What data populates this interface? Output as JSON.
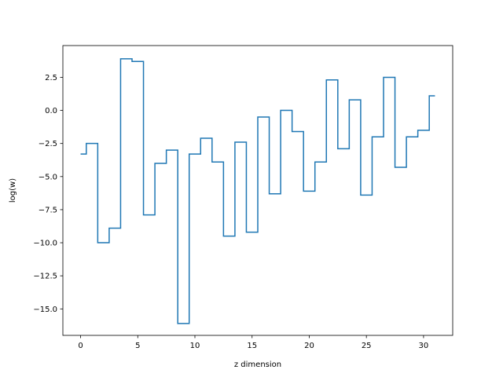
{
  "chart_data": {
    "type": "line",
    "drawstyle": "steps-mid",
    "title": "",
    "xlabel": "z dimension",
    "ylabel": "log(w)",
    "xlim": [
      -1.55,
      32.55
    ],
    "ylim": [
      -17.0,
      4.9
    ],
    "xticks": [
      0,
      5,
      10,
      15,
      20,
      25,
      30
    ],
    "xtick_labels": [
      "0",
      "5",
      "10",
      "15",
      "20",
      "25",
      "30"
    ],
    "yticks": [
      -15.0,
      -12.5,
      -10.0,
      -7.5,
      -5.0,
      -2.5,
      0.0,
      2.5
    ],
    "ytick_labels": [
      "−15.0",
      "−12.5",
      "−10.0",
      "−7.5",
      "−5.0",
      "−2.5",
      "0.0",
      "2.5"
    ],
    "grid": false,
    "color": "#1f77b4",
    "x": [
      0,
      1,
      2,
      3,
      4,
      5,
      6,
      7,
      8,
      9,
      10,
      11,
      12,
      13,
      14,
      15,
      16,
      17,
      18,
      19,
      20,
      21,
      22,
      23,
      24,
      25,
      26,
      27,
      28,
      29,
      30,
      31
    ],
    "y": [
      -3.3,
      -2.5,
      -10.0,
      -8.9,
      3.9,
      3.7,
      -7.9,
      -4.0,
      -3.0,
      -16.1,
      -3.3,
      -2.1,
      -3.9,
      -9.5,
      -2.4,
      -9.2,
      -0.5,
      -6.3,
      0.0,
      -1.6,
      -6.1,
      -3.9,
      2.3,
      -2.9,
      0.8,
      -6.4,
      -2.0,
      2.5,
      -4.3,
      -2.0,
      -1.5,
      1.1
    ]
  }
}
